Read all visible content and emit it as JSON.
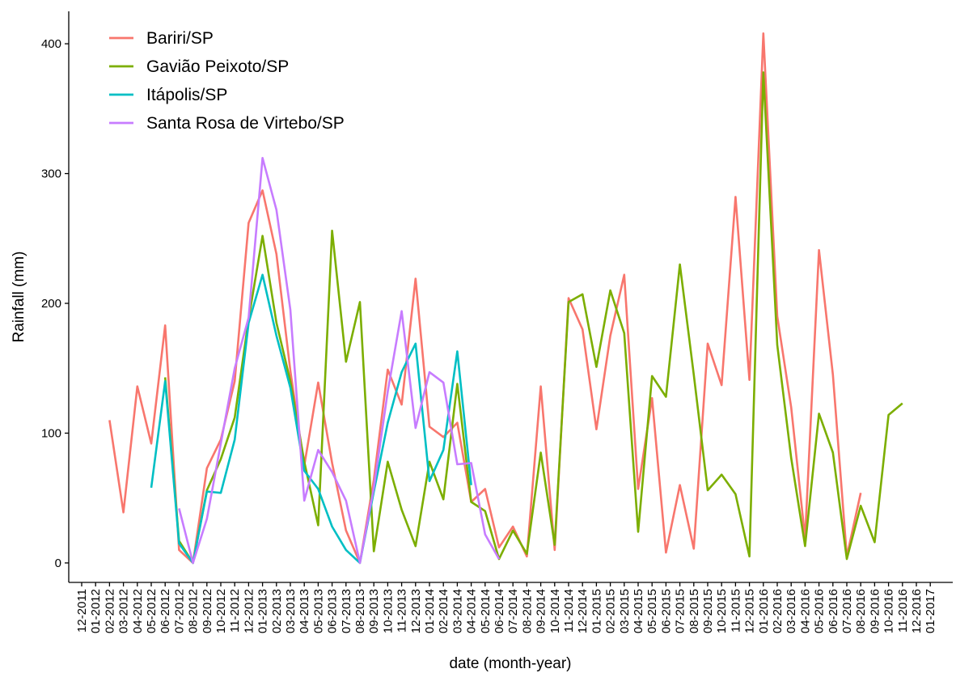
{
  "chart_data": {
    "type": "line",
    "xlabel": "date (month-year)",
    "ylabel": "Rainfall (mm)",
    "ylim": [
      -15,
      425
    ],
    "yticks": [
      0,
      100,
      200,
      300,
      400
    ],
    "grid": false,
    "legend_position": "top-left",
    "x": [
      "12-2011",
      "01-2012",
      "02-2012",
      "03-2012",
      "04-2012",
      "05-2012",
      "06-2012",
      "07-2012",
      "08-2012",
      "09-2012",
      "10-2012",
      "11-2012",
      "12-2012",
      "01-2013",
      "02-2013",
      "03-2013",
      "04-2013",
      "05-2013",
      "06-2013",
      "07-2013",
      "08-2013",
      "09-2013",
      "10-2013",
      "11-2013",
      "12-2013",
      "01-2014",
      "02-2014",
      "03-2014",
      "04-2014",
      "05-2014",
      "06-2014",
      "07-2014",
      "08-2014",
      "09-2014",
      "10-2014",
      "11-2014",
      "12-2014",
      "01-2015",
      "02-2015",
      "03-2015",
      "04-2015",
      "05-2015",
      "06-2015",
      "07-2015",
      "08-2015",
      "09-2015",
      "10-2015",
      "11-2015",
      "12-2015",
      "01-2016",
      "02-2016",
      "03-2016",
      "04-2016",
      "05-2016",
      "06-2016",
      "07-2016",
      "08-2016",
      "09-2016",
      "10-2016",
      "11-2016",
      "12-2016",
      "01-2017"
    ],
    "series": [
      {
        "name": "Bariri/SP",
        "color": "#f8766d",
        "values": [
          null,
          null,
          110,
          39,
          136,
          92,
          183,
          10,
          0,
          73,
          95,
          140,
          262,
          287,
          238,
          148,
          75,
          139,
          77,
          25,
          0,
          64,
          149,
          122,
          219,
          105,
          97,
          108,
          47,
          57,
          12,
          28,
          5,
          136,
          10,
          204,
          180,
          103,
          175,
          222,
          57,
          127,
          8,
          60,
          11,
          169,
          137,
          282,
          141,
          408,
          190,
          120,
          19,
          241,
          145,
          5,
          54,
          null,
          null,
          null,
          null,
          null
        ]
      },
      {
        "name": "Gavião Peixoto/SP",
        "color": "#7cae00",
        "values": [
          null,
          null,
          null,
          null,
          null,
          null,
          143,
          17,
          0,
          56,
          80,
          112,
          188,
          252,
          185,
          140,
          78,
          29,
          256,
          155,
          201,
          9,
          78,
          41,
          13,
          78,
          49,
          138,
          47,
          40,
          3,
          25,
          7,
          85,
          14,
          201,
          207,
          151,
          210,
          177,
          24,
          144,
          128,
          230,
          145,
          56,
          68,
          53,
          5,
          378,
          168,
          81,
          13,
          115,
          85,
          3,
          44,
          16,
          114,
          123,
          null,
          null
        ]
      },
      {
        "name": "Itápolis/SP",
        "color": "#00bfc4",
        "values": [
          null,
          null,
          null,
          null,
          null,
          58,
          140,
          15,
          0,
          55,
          54,
          95,
          185,
          222,
          175,
          135,
          71,
          57,
          28,
          10,
          0,
          55,
          108,
          147,
          169,
          63,
          87,
          163,
          60,
          null,
          null,
          null,
          null,
          null,
          null,
          null,
          null,
          null,
          null,
          null,
          null,
          null,
          null,
          null,
          null,
          null,
          null,
          null,
          null,
          null,
          null,
          null,
          null,
          null,
          null,
          null,
          null,
          null,
          null,
          null,
          null,
          null
        ]
      },
      {
        "name": "Santa Rosa de Virtebo/SP",
        "color": "#c77cff",
        "values": [
          null,
          null,
          null,
          null,
          null,
          null,
          null,
          42,
          0,
          34,
          92,
          150,
          189,
          312,
          272,
          195,
          48,
          87,
          70,
          48,
          0,
          58,
          132,
          194,
          104,
          147,
          139,
          76,
          77,
          22,
          3,
          null,
          null,
          null,
          null,
          null,
          null,
          null,
          null,
          null,
          null,
          null,
          null,
          null,
          null,
          null,
          null,
          null,
          null,
          null,
          null,
          null,
          null,
          null,
          null,
          null,
          null,
          null,
          null,
          null,
          null,
          null
        ]
      }
    ]
  }
}
